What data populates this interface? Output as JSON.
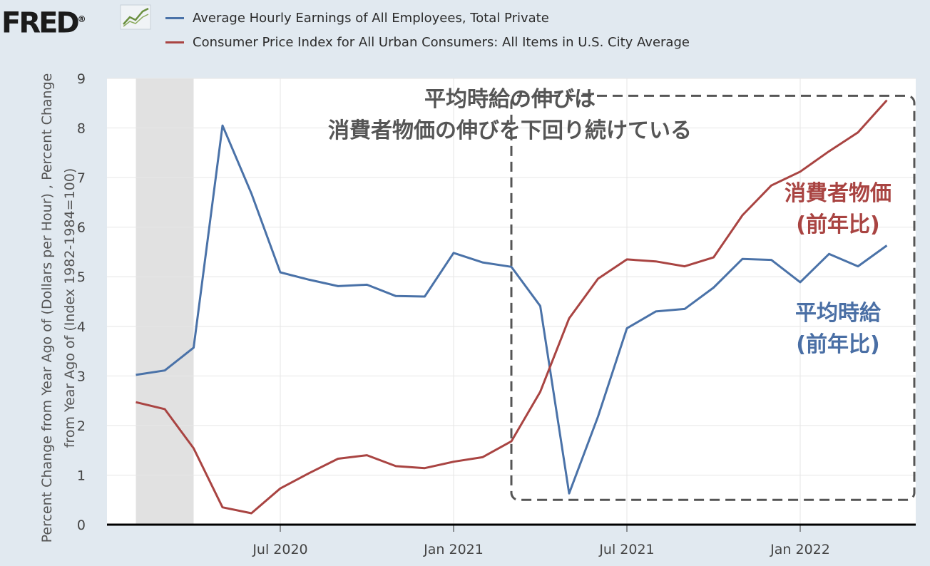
{
  "brand": {
    "name": "FRED",
    "registered": "®",
    "icon": "chart-line-icon"
  },
  "legend": [
    {
      "label": "Average Hourly Earnings of All Employees, Total Private",
      "color": "#4a72a8"
    },
    {
      "label": "Consumer Price Index for All Urban Consumers: All Items in U.S. City Average",
      "color": "#a94442"
    }
  ],
  "y_axis_label": "Percent Change from Year Ago of (Dollars per Hour) , Percent Change from Year Ago of (Index 1982-1984=100)",
  "annotations": {
    "headline_line1": "平均時給の伸びは",
    "headline_line2": "消費者物価の伸びを下回り続けている",
    "cpi_line1": "消費者物価",
    "cpi_line2": "(前年比)",
    "wage_line1": "平均時給",
    "wage_line2": "(前年比)"
  },
  "chart_data": {
    "type": "line",
    "x": [
      "2020-02",
      "2020-03",
      "2020-04",
      "2020-05",
      "2020-06",
      "2020-07",
      "2020-08",
      "2020-09",
      "2020-10",
      "2020-11",
      "2020-12",
      "2021-01",
      "2021-02",
      "2021-03",
      "2021-04",
      "2021-05",
      "2021-06",
      "2021-07",
      "2021-08",
      "2021-09",
      "2021-10",
      "2021-11",
      "2021-12",
      "2022-01",
      "2022-02",
      "2022-03",
      "2022-04"
    ],
    "series": [
      {
        "name": "Average Hourly Earnings of All Employees, Total Private",
        "color": "#4a72a8",
        "values": [
          3.02,
          3.11,
          3.57,
          8.05,
          6.68,
          5.09,
          4.94,
          4.81,
          4.84,
          4.61,
          4.6,
          5.48,
          5.29,
          5.2,
          4.41,
          0.63,
          2.18,
          3.96,
          4.3,
          4.35,
          4.78,
          5.36,
          5.34,
          4.89,
          5.46,
          5.21,
          5.63
        ]
      },
      {
        "name": "Consumer Price Index for All Urban Consumers: All Items in U.S. City Average",
        "color": "#a94442",
        "values": [
          2.47,
          2.33,
          1.54,
          0.35,
          0.23,
          0.73,
          1.04,
          1.33,
          1.4,
          1.18,
          1.14,
          1.27,
          1.36,
          1.68,
          2.68,
          4.16,
          4.96,
          5.35,
          5.31,
          5.21,
          5.39,
          6.24,
          6.84,
          7.12,
          7.53,
          7.91,
          8.56
        ]
      }
    ],
    "x_tick_labels": [
      {
        "label": "Jul 2020",
        "at": "2020-07"
      },
      {
        "label": "Jan 2021",
        "at": "2021-01"
      },
      {
        "label": "Jul 2021",
        "at": "2021-07"
      },
      {
        "label": "Jan 2022",
        "at": "2022-01"
      }
    ],
    "y_ticks": [
      0,
      1,
      2,
      3,
      4,
      5,
      6,
      7,
      8,
      9
    ],
    "ylim": [
      0,
      9
    ],
    "x_range": [
      "2020-01",
      "2022-05"
    ],
    "recession_shading": {
      "from": "2020-02",
      "to": "2020-04"
    },
    "highlight_box": {
      "from": "2021-03",
      "to": "2022-05",
      "y_from": 0.5,
      "y_to": 8.65
    },
    "grid": true
  }
}
